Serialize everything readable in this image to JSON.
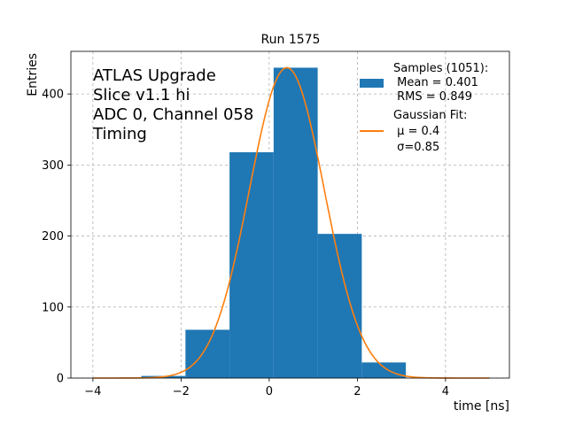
{
  "chart_data": {
    "type": "bar",
    "title": "Run 1575",
    "xlabel": "time [ns]",
    "ylabel": "Entries",
    "xlim": [
      -4.5,
      5.45
    ],
    "ylim": [
      0,
      460
    ],
    "xticks": [
      -4,
      -2,
      0,
      2,
      4
    ],
    "yticks": [
      0,
      100,
      200,
      300,
      400
    ],
    "grid": true,
    "annotation": [
      "ATLAS Upgrade",
      "Slice v1.1 hi",
      "ADC 0, Channel 058",
      "Timing"
    ],
    "histogram": {
      "bin_edges": [
        -2.9,
        -1.9,
        -0.9,
        0.1,
        1.1,
        2.1,
        3.1
      ],
      "counts": [
        3,
        68,
        318,
        437,
        203,
        22
      ],
      "color": "#1f77b4"
    },
    "fit": {
      "mu": 0.4,
      "sigma": 0.85,
      "amplitude": 437,
      "x_range": [
        -4.0,
        5.0
      ],
      "color": "#ff7f0e"
    },
    "legend": {
      "placement": "top-right",
      "entries": [
        {
          "lines": [
            "Samples (1051):",
            " Mean = 0.401",
            " RMS = 0.849"
          ],
          "swatch": "patch",
          "color": "#1f77b4"
        },
        {
          "lines": [
            "Gaussian Fit:",
            " μ = 0.4",
            " σ=0.85"
          ],
          "swatch": "line",
          "color": "#ff7f0e"
        }
      ]
    }
  }
}
